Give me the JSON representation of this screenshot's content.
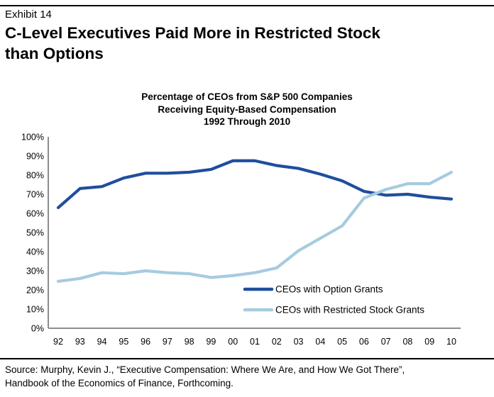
{
  "header": {
    "exhibit": "Exhibit 14",
    "title_line1": "C-Level Executives Paid More in Restricted Stock",
    "title_line2": "than Options"
  },
  "chart_data": {
    "type": "line",
    "title_lines": [
      "Percentage of CEOs from S&P 500 Companies",
      "Receiving Equity-Based Compensation",
      "1992 Through 2010"
    ],
    "categories": [
      "92",
      "93",
      "94",
      "95",
      "96",
      "97",
      "98",
      "99",
      "00",
      "01",
      "02",
      "03",
      "04",
      "05",
      "06",
      "07",
      "08",
      "09",
      "10"
    ],
    "series": [
      {
        "name": "CEOs with Option Grants",
        "color": "#1F4E9E",
        "values": [
          63,
          73,
          74,
          78.5,
          81,
          81,
          81.5,
          83,
          87.5,
          87.5,
          85,
          83.5,
          80.5,
          77,
          71.5,
          69.5,
          70,
          68.5,
          67.5
        ]
      },
      {
        "name": "CEOs with Restricted Stock Grants",
        "color": "#A6CBE0",
        "values": [
          24.5,
          26,
          29,
          28.5,
          30,
          29,
          28.5,
          26.5,
          27.5,
          29,
          31.5,
          40.5,
          47,
          53.5,
          68,
          72.5,
          75.5,
          75.5,
          81.5
        ]
      }
    ],
    "ylim": [
      0,
      100
    ],
    "ytick_step": 10,
    "ytick_suffix": "%",
    "grid": false,
    "legend_position": "inside-right",
    "axis_color": "#8C8C8C"
  },
  "footer": {
    "source_line1": "Source: Murphy, Kevin J., “Executive Compensation: Where We Are, and How We Got There”,",
    "source_line2": "Handbook of the Economics of Finance, Forthcoming."
  }
}
